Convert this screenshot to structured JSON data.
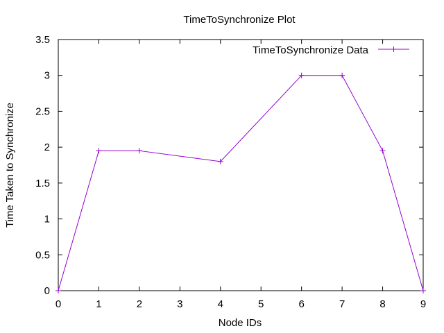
{
  "chart_data": {
    "type": "line",
    "title": "TimeToSynchronize Plot",
    "xlabel": "Node IDs",
    "ylabel": "Time Taken to Synchronize",
    "x_ticks": [
      "0",
      "1",
      "2",
      "3",
      "4",
      "5",
      "6",
      "7",
      "8",
      "9"
    ],
    "y_ticks": [
      "0",
      "0.5",
      "1",
      "1.5",
      "2",
      "2.5",
      "3",
      "3.5"
    ],
    "xlim": [
      0,
      9
    ],
    "ylim": [
      0,
      3.5
    ],
    "grid": false,
    "legend_position": "top-right",
    "series": [
      {
        "name": "TimeToSynchronize Data",
        "color": "#9400d3",
        "marker": "plus",
        "points": [
          {
            "x": 0,
            "y": 0
          },
          {
            "x": 1,
            "y": 1.95
          },
          {
            "x": 2,
            "y": 1.95
          },
          {
            "x": 4,
            "y": 1.8
          },
          {
            "x": 6,
            "y": 3.0
          },
          {
            "x": 7,
            "y": 3.0
          },
          {
            "x": 8,
            "y": 1.95
          },
          {
            "x": 9,
            "y": 0
          }
        ]
      }
    ]
  }
}
